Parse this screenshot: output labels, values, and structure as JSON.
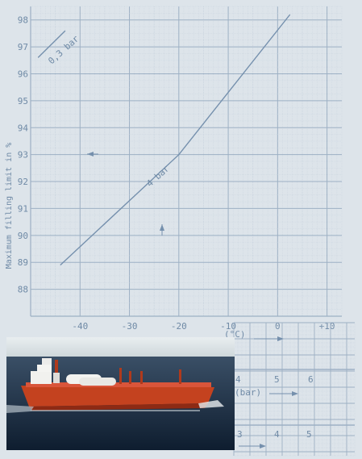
{
  "chart_data": {
    "type": "line",
    "ylabel": "Maximum filling limit in %",
    "y_ticks": [
      "98",
      "97",
      "96",
      "95",
      "94",
      "93",
      "92",
      "91",
      "90",
      "89",
      "88"
    ],
    "x_ticks": [
      "-40",
      "-30",
      "-20",
      "-10",
      "0",
      "+10"
    ],
    "ylim": [
      87,
      98.5
    ],
    "xlim": [
      -50,
      13
    ],
    "grid": true,
    "series": [
      {
        "name": "0,3 bar",
        "points": [
          [
            -48.5,
            96.6
          ],
          [
            -43,
            97.6
          ]
        ]
      },
      {
        "name": "4 bar",
        "points": [
          [
            -44,
            88.9
          ],
          [
            -20,
            93.0
          ],
          [
            2.5,
            98.2
          ]
        ]
      }
    ],
    "annotations": [
      {
        "text": "0,3 bar"
      },
      {
        "text": "4 bar"
      },
      {
        "text": "(°C)"
      }
    ],
    "secondary_scales": [
      {
        "label": "(bar)",
        "ticks": [
          "4",
          "5",
          "6"
        ]
      },
      {
        "label": "",
        "ticks": [
          "3",
          "4",
          "5"
        ]
      }
    ]
  },
  "photo": {
    "subject": "lpg-tanker"
  },
  "colors": {
    "background": "#dde4ea",
    "grid_minor": "#c3cfdb",
    "grid_major": "#9db0c4",
    "line": "#7590ad",
    "text": "#6f8aa6"
  }
}
